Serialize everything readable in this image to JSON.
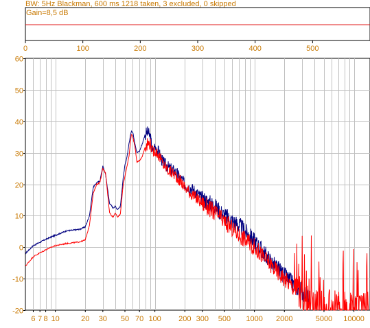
{
  "header": {
    "status": "BW: 5Hz Blackman, 600 ms 1218 taken, 3 excluded, 0 skipped",
    "gain_label": "Gain=8,5 dB"
  },
  "colors": {
    "label": "#c87800",
    "gain_line": "#e01818",
    "series_blue": "#000080",
    "series_red": "#ff0000",
    "grid": "#c0c0c0"
  },
  "chart_data": [
    {
      "type": "line",
      "x_ticks": [
        "0",
        "100",
        "200",
        "300",
        "400",
        "500"
      ],
      "xlim": [
        0,
        600
      ],
      "series": [
        {
          "values_x": [
            0,
            600
          ],
          "values_y": [
            8.5,
            8.5
          ]
        }
      ]
    },
    {
      "type": "line",
      "x_scale": "log",
      "xlim": [
        5,
        14500
      ],
      "ylim": [
        -20,
        60
      ],
      "y_ticks": [
        "60",
        "50",
        "40",
        "30",
        "20",
        "10",
        "0",
        "-10",
        "-20"
      ],
      "x_ticks": [
        {
          "v": 6,
          "l": "6"
        },
        {
          "v": 7,
          "l": "7"
        },
        {
          "v": 8,
          "l": "8"
        },
        {
          "v": 10,
          "l": "10"
        },
        {
          "v": 20,
          "l": "20"
        },
        {
          "v": 30,
          "l": "30"
        },
        {
          "v": 50,
          "l": "50"
        },
        {
          "v": 70,
          "l": "70"
        },
        {
          "v": 100,
          "l": "100"
        },
        {
          "v": 200,
          "l": "200"
        },
        {
          "v": 300,
          "l": "300"
        },
        {
          "v": 500,
          "l": "500"
        },
        {
          "v": 1000,
          "l": "1000"
        },
        {
          "v": 2000,
          "l": "2000"
        },
        {
          "v": 5000,
          "l": "5000"
        },
        {
          "v": 10000,
          "l": "10000"
        }
      ],
      "grid": true,
      "series": [
        {
          "color": "blue",
          "x": [
            5,
            6,
            8,
            10,
            13,
            16,
            18,
            20,
            22,
            24,
            26,
            28,
            30,
            32,
            35,
            38,
            40,
            42,
            45,
            48,
            50,
            52,
            55,
            58,
            60,
            63,
            66,
            70,
            75,
            80,
            85,
            90,
            95,
            100,
            110,
            120,
            140,
            160,
            180,
            200,
            250,
            300,
            400,
            500,
            700,
            1000,
            1500,
            2000,
            2500,
            3000,
            3500
          ],
          "y": [
            -2,
            0.5,
            2.5,
            3.8,
            5.2,
            5.5,
            5.8,
            6.5,
            10,
            19,
            20.5,
            21,
            25.8,
            23,
            14,
            12.5,
            13,
            12,
            13,
            22,
            26,
            28,
            33,
            37,
            36.5,
            33,
            30,
            30.5,
            33,
            36,
            36.5,
            35,
            30,
            32,
            30,
            27,
            25,
            24,
            22,
            20,
            18,
            15.5,
            13,
            10,
            7,
            2,
            -5,
            -9,
            -12,
            -14,
            -16
          ]
        },
        {
          "color": "red",
          "x": [
            5,
            6,
            8,
            10,
            13,
            16,
            18,
            20,
            22,
            24,
            26,
            28,
            30,
            32,
            35,
            38,
            40,
            42,
            45,
            48,
            50,
            52,
            55,
            58,
            60,
            63,
            66,
            70,
            75,
            80,
            85,
            90,
            95,
            100,
            110,
            120,
            140,
            160,
            180,
            200,
            250,
            300,
            400,
            500,
            700,
            1000,
            1500,
            2000,
            2500,
            3000,
            3500,
            5000,
            7000,
            10000,
            14000
          ],
          "y": [
            -6,
            -3,
            -0.8,
            0.5,
            1.2,
            1.5,
            1.8,
            2.3,
            7,
            17,
            20,
            20.5,
            25,
            23.5,
            11,
            9.5,
            11,
            9.5,
            10.5,
            20,
            22.5,
            25,
            29,
            36,
            35,
            32,
            27,
            27.5,
            29,
            32,
            33,
            33,
            30,
            31,
            29,
            26.5,
            24,
            23,
            21,
            19,
            16,
            14,
            11,
            8,
            4,
            0,
            -6,
            -10,
            -13,
            -16,
            -18,
            -19,
            -20,
            -20,
            -20
          ]
        }
      ]
    }
  ]
}
